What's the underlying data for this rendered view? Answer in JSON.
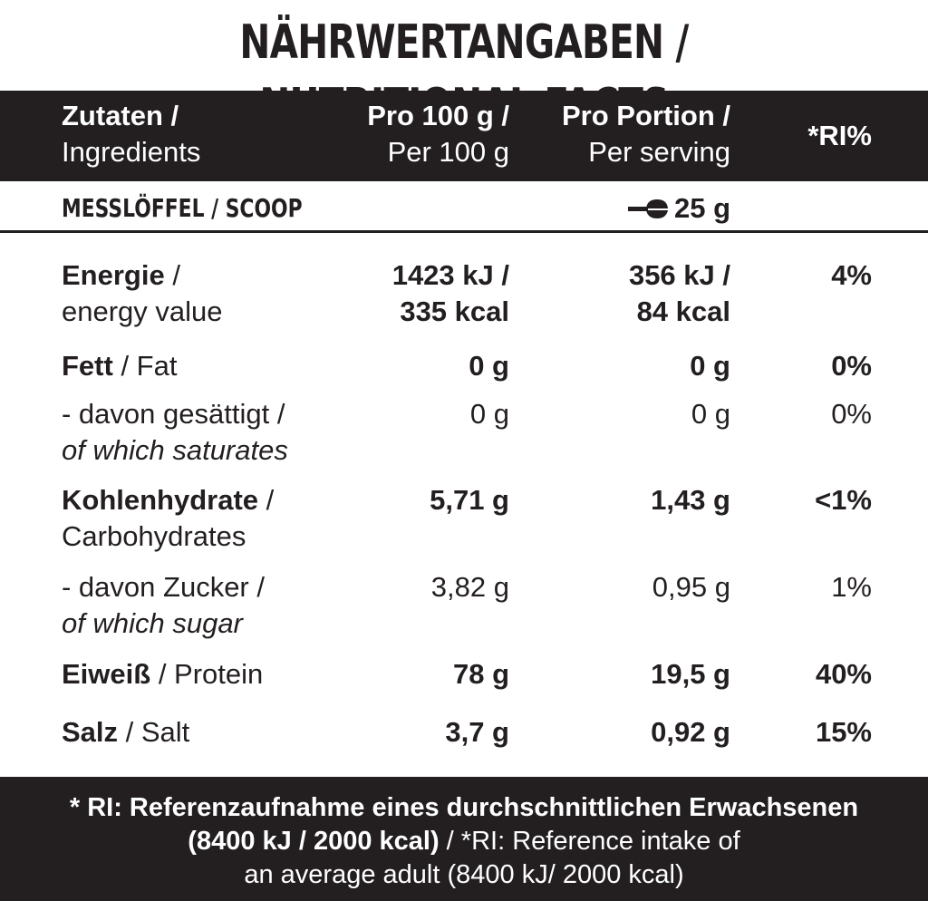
{
  "title": "NÄHRWERTANGABEN / NUTRITIONAL FACTS",
  "header": {
    "col1_de": "Zutaten /",
    "col1_en": "Ingredients",
    "col2_de": "Pro 100 g /",
    "col2_en": "Per 100 g",
    "col3_de": "Pro Portion /",
    "col3_en": "Per serving",
    "col4": "*RI%"
  },
  "scoop": {
    "label": "MESSLÖFFEL / SCOOP",
    "icon": "scoop-icon",
    "value": "25 g"
  },
  "rows": {
    "energy": {
      "de": "Energie",
      "sep": " /",
      "en": "energy value",
      "per100_a": "1423 kJ /",
      "per100_b": "335 kcal",
      "serving_a": "356 kJ /",
      "serving_b": "84 kcal",
      "ri": "4%"
    },
    "fat": {
      "de": "Fett",
      "en": " / Fat",
      "per100": "0 g",
      "serving": "0 g",
      "ri": "0%"
    },
    "saturates": {
      "de": "- davon gesättigt /",
      "en": "of which saturates",
      "per100": "0 g",
      "serving": "0 g",
      "ri": "0%"
    },
    "carbs": {
      "de": "Kohlenhydrate",
      "sep": " /",
      "en": "Carbohydrates",
      "per100": "5,71 g",
      "serving": "1,43 g",
      "ri": "<1%"
    },
    "sugar": {
      "de": "- davon Zucker /",
      "en": "of which sugar",
      "per100": "3,82 g",
      "serving": "0,95 g",
      "ri": "1%"
    },
    "protein": {
      "de": "Eiweiß",
      "en": " / Protein",
      "per100": "78 g",
      "serving": "19,5 g",
      "ri": "40%"
    },
    "salt": {
      "de": "Salz",
      "en": " / Salt",
      "per100": "3,7 g",
      "serving": "0,92 g",
      "ri": "15%"
    }
  },
  "footer": {
    "line1": "* RI: Referenzaufnahme eines durchschnittlichen Erwachsenen",
    "line2_bold": "(8400 kJ / 2000 kcal)",
    "line2_rest": " / *RI: Reference intake of",
    "line3": "an average adult (8400 kJ/ 2000 kcal)"
  },
  "colors": {
    "dark": "#231f20",
    "light": "#ffffff"
  }
}
